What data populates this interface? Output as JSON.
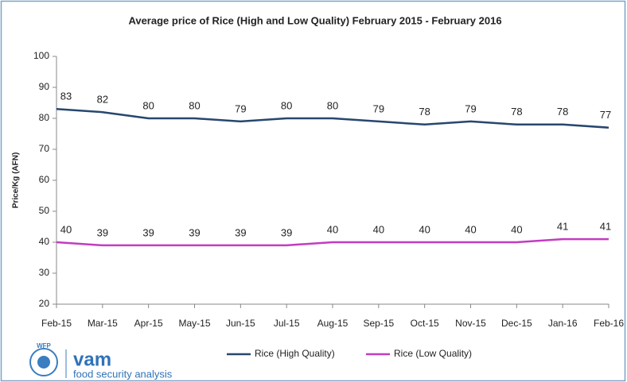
{
  "chart_data": {
    "type": "line",
    "title": "Average price of Rice (High and Low Quality)  February 2015 - February 2016",
    "ylabel": "Price/Kg (AFN)",
    "categories": [
      "Feb-15",
      "Mar-15",
      "Apr-15",
      "May-15",
      "Jun-15",
      "Jul-15",
      "Aug-15",
      "Sep-15",
      "Oct-15",
      "Nov-15",
      "Dec-15",
      "Jan-16",
      "Feb-16"
    ],
    "series": [
      {
        "name": "Rice (High Quality)",
        "color": "#27476e",
        "values": [
          83,
          82,
          80,
          80,
          79,
          80,
          80,
          79,
          78,
          79,
          78,
          78,
          77
        ]
      },
      {
        "name": "Rice (Low Quality)",
        "color": "#c23cc2",
        "values": [
          40,
          39,
          39,
          39,
          39,
          39,
          40,
          40,
          40,
          40,
          40,
          41,
          41
        ]
      }
    ],
    "ylim": [
      20,
      100
    ],
    "yticks": [
      20,
      30,
      40,
      50,
      60,
      70,
      80,
      90,
      100
    ],
    "grid": false,
    "legend": "bottom"
  },
  "logo": {
    "org": "WFP",
    "name": "vam",
    "tagline": "food security analysis"
  }
}
